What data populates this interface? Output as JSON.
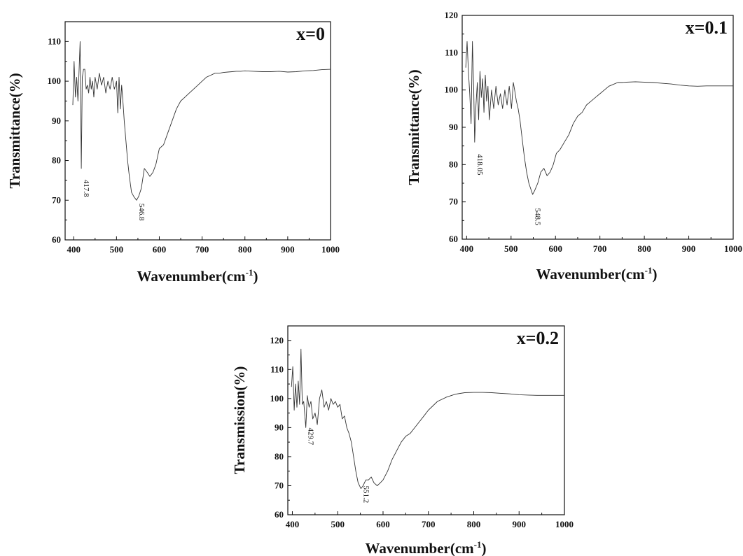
{
  "chart_data": [
    {
      "type": "line",
      "label": "x=0",
      "xlabel": "Wavenumber(cm",
      "xlabel_sup": "-1",
      "xlabel_end": ")",
      "ylabel": "Transmittance(%)",
      "xlim": [
        380,
        1000
      ],
      "ylim": [
        60,
        115
      ],
      "xticks": [
        400,
        500,
        600,
        700,
        800,
        900,
        1000
      ],
      "yticks": [
        60,
        70,
        80,
        90,
        100,
        110
      ],
      "peaks": [
        {
          "label": "417.8",
          "x": 417.8,
          "y": 73
        },
        {
          "label": "546.8",
          "x": 546.8,
          "y": 67
        }
      ],
      "series": [
        {
          "x": [
            398,
            401,
            404,
            407,
            410,
            413,
            415,
            417.8,
            420,
            423,
            426,
            429,
            432,
            435,
            438,
            441,
            444,
            447,
            450,
            455,
            460,
            465,
            470,
            475,
            480,
            485,
            490,
            495,
            500,
            503,
            506,
            509,
            512,
            515,
            518,
            522,
            526,
            530,
            535,
            540,
            546.8,
            552,
            558,
            565,
            572,
            578,
            585,
            592,
            600,
            610,
            620,
            630,
            640,
            650,
            660,
            670,
            680,
            690,
            700,
            710,
            720,
            730,
            740,
            750,
            760,
            770,
            780,
            790,
            800,
            820,
            840,
            860,
            880,
            900,
            920,
            940,
            960,
            980,
            1000
          ],
          "y": [
            94,
            105,
            96,
            101,
            95,
            104,
            110,
            78,
            101,
            103,
            103,
            98,
            99,
            97,
            101,
            98,
            100,
            96,
            101,
            98,
            102,
            99,
            101,
            97,
            100,
            98,
            101,
            98,
            100,
            92,
            101,
            93,
            99,
            95,
            90,
            85,
            80,
            76,
            72,
            71,
            70,
            71,
            73,
            78,
            77,
            76,
            77,
            79,
            83,
            84,
            87,
            90,
            93,
            95,
            96,
            97,
            98,
            99,
            100,
            101,
            101.5,
            102,
            102,
            102.2,
            102.3,
            102.4,
            102.5,
            102.5,
            102.6,
            102.5,
            102.4,
            102.4,
            102.5,
            102.3,
            102.4,
            102.6,
            102.7,
            102.9,
            103
          ]
        }
      ]
    },
    {
      "type": "line",
      "label": "x=0.1",
      "xlabel": "Wavenumber(cm",
      "xlabel_sup": "-1",
      "xlabel_end": ")",
      "ylabel": "Transmittance(%)",
      "xlim": [
        390,
        1000
      ],
      "ylim": [
        60,
        120
      ],
      "xticks": [
        400,
        500,
        600,
        700,
        800,
        900,
        1000
      ],
      "yticks": [
        60,
        70,
        80,
        90,
        100,
        110,
        120
      ],
      "peaks": [
        {
          "label": "418.05",
          "x": 418.05,
          "y": 80
        },
        {
          "label": "548.5",
          "x": 548.5,
          "y": 66
        }
      ],
      "series": [
        {
          "x": [
            398,
            401,
            404,
            407,
            410,
            413,
            416,
            418.05,
            421,
            424,
            427,
            430,
            433,
            436,
            439,
            442,
            445,
            448,
            451,
            456,
            461,
            466,
            471,
            476,
            481,
            486,
            491,
            496,
            501,
            505,
            508,
            512,
            516,
            520,
            525,
            530,
            535,
            540,
            548.5,
            553,
            560,
            567,
            574,
            581,
            588,
            595,
            602,
            610,
            620,
            630,
            640,
            650,
            660,
            670,
            680,
            690,
            700,
            710,
            720,
            730,
            740,
            750,
            760,
            780,
            800,
            820,
            840,
            860,
            880,
            900,
            920,
            940,
            960,
            980,
            1000
          ],
          "y": [
            106,
            113,
            105,
            99,
            91,
            113,
            100,
            86,
            96,
            102,
            92,
            105,
            98,
            103,
            94,
            104,
            97,
            101,
            92,
            100,
            95,
            101,
            96,
            99,
            95,
            100,
            96,
            101,
            95,
            102,
            100,
            97,
            95,
            92,
            87,
            82,
            78,
            75,
            72,
            73,
            75,
            78,
            79,
            77,
            78,
            80,
            83,
            84,
            86,
            88,
            91,
            93,
            94,
            96,
            97,
            98,
            99,
            100,
            101,
            101.5,
            102,
            102,
            102.1,
            102.2,
            102.1,
            102,
            101.8,
            101.6,
            101.3,
            101.1,
            101,
            101.1,
            101.1,
            101.1,
            101.1
          ]
        }
      ]
    },
    {
      "type": "line",
      "label": "x=0.2",
      "xlabel": "Wavenumber(cm",
      "xlabel_sup": "-1",
      "xlabel_end": ")",
      "ylabel": "Transmission(%)",
      "xlim": [
        390,
        1000
      ],
      "ylim": [
        60,
        125
      ],
      "xticks": [
        400,
        500,
        600,
        700,
        800,
        900,
        1000
      ],
      "yticks": [
        60,
        70,
        80,
        90,
        100,
        110,
        120
      ],
      "peaks": [
        {
          "label": "429.7",
          "x": 429.7,
          "y": 87
        },
        {
          "label": "551.2",
          "x": 551.2,
          "y": 67
        }
      ],
      "series": [
        {
          "x": [
            398,
            401,
            404,
            407,
            410,
            413,
            416,
            419,
            422,
            425,
            429.7,
            433,
            437,
            441,
            445,
            450,
            455,
            460,
            465,
            470,
            475,
            480,
            485,
            490,
            495,
            500,
            505,
            510,
            515,
            520,
            525,
            530,
            535,
            540,
            545,
            551.2,
            556,
            562,
            568,
            574,
            580,
            587,
            594,
            600,
            610,
            620,
            630,
            640,
            650,
            660,
            670,
            680,
            690,
            700,
            720,
            740,
            760,
            780,
            800,
            820,
            840,
            860,
            880,
            900,
            920,
            940,
            960,
            980,
            1000
          ],
          "y": [
            104,
            111,
            96,
            105,
            97,
            106,
            98,
            117,
            98,
            99,
            90,
            101,
            97,
            99,
            93,
            95,
            91,
            100,
            103,
            97,
            99,
            96,
            100,
            98,
            99,
            97,
            98,
            93,
            94,
            90,
            88,
            85,
            80,
            75,
            71,
            69,
            70,
            72,
            72,
            73,
            71,
            70,
            71,
            72,
            75,
            79,
            82,
            85,
            87,
            88,
            90,
            92,
            94,
            96,
            99,
            100.5,
            101.5,
            102,
            102.1,
            102.1,
            102,
            101.8,
            101.6,
            101.3,
            101.2,
            101.1,
            101.1,
            101.1,
            101.1
          ]
        }
      ]
    }
  ]
}
